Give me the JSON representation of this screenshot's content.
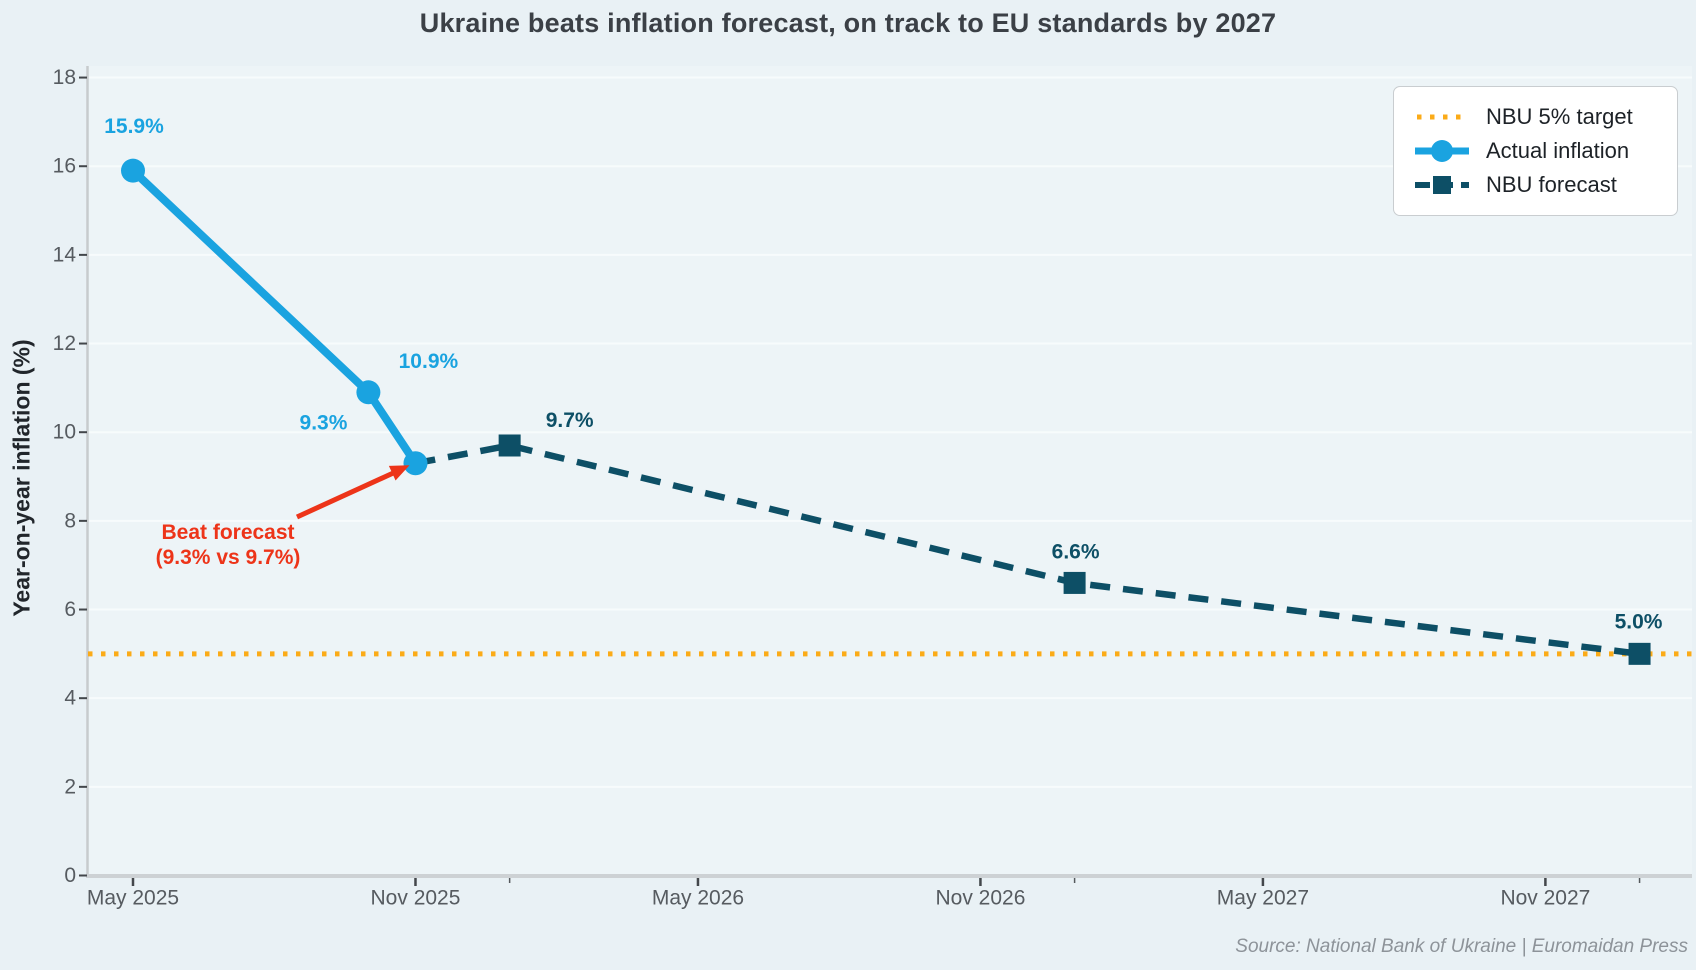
{
  "title": "Ukraine beats inflation forecast, on track to EU standards by 2027",
  "source": "Source: National Bank of Ukraine | Euromaidan Press",
  "colors": {
    "actual": "#1aa3e0",
    "forecast": "#0d4f66",
    "target": "#fbab18",
    "annotation": "#ed3419",
    "figure_bg": "#e9f1f5",
    "plot_bg": "#edf4f7"
  },
  "chart_data": {
    "type": "line",
    "title": "Ukraine beats inflation forecast, on track to EU standards by 2027",
    "xlabel": "",
    "ylabel": "Year-on-year inflation (%)",
    "ylim": [
      0,
      18
    ],
    "yticks": [
      0,
      2,
      4,
      6,
      8,
      10,
      12,
      14,
      16,
      18
    ],
    "xticks": [
      {
        "label": "May 2025",
        "month": 0
      },
      {
        "label": "Nov 2025",
        "month": 6
      },
      {
        "label": "May 2026",
        "month": 12
      },
      {
        "label": "Nov 2026",
        "month": 18
      },
      {
        "label": "May 2027",
        "month": 24
      },
      {
        "label": "Nov 2027",
        "month": 30
      }
    ],
    "minor_xticks": [
      {
        "date": "Jan 2026",
        "month": 8
      },
      {
        "date": "Jan 2027",
        "month": 20
      },
      {
        "date": "Jan 2028",
        "month": 32
      }
    ],
    "grid": true,
    "legend_position": "upper right",
    "series": [
      {
        "name": "Actual inflation",
        "type": "line",
        "style": "solid",
        "marker": "circle",
        "color": "#1aa3e0",
        "points": [
          {
            "date": "May 2025",
            "month": 0,
            "value": 15.9,
            "label": "15.9%"
          },
          {
            "date": "Oct 2025",
            "month": 5,
            "value": 10.9,
            "label": "10.9%"
          },
          {
            "date": "Nov 2025",
            "month": 6,
            "value": 9.3,
            "label": "9.3%"
          }
        ]
      },
      {
        "name": "NBU forecast",
        "type": "line",
        "style": "dashed",
        "marker": "square",
        "color": "#0d4f66",
        "line_start": {
          "date": "Nov 2025",
          "month": 6,
          "value": 9.3
        },
        "points": [
          {
            "date": "Jan 2026",
            "month": 8,
            "value": 9.7,
            "label": "9.7%"
          },
          {
            "date": "Jan 2027",
            "month": 20,
            "value": 6.6,
            "label": "6.6%"
          },
          {
            "date": "Jan 2028",
            "month": 32,
            "value": 5.0,
            "label": "5.0%"
          }
        ]
      },
      {
        "name": "NBU 5% target",
        "type": "hline",
        "style": "dotted",
        "color": "#fbab18",
        "value": 5.0
      }
    ],
    "legend": {
      "entries": [
        "NBU 5% target",
        "Actual inflation",
        "NBU forecast"
      ]
    },
    "annotation": {
      "lines": [
        "Beat forecast",
        "(9.3% vs 9.7%)"
      ],
      "color": "#ed3419",
      "arrow_to": {
        "date": "Nov 2025",
        "month": 6,
        "value": 9.3
      }
    }
  }
}
